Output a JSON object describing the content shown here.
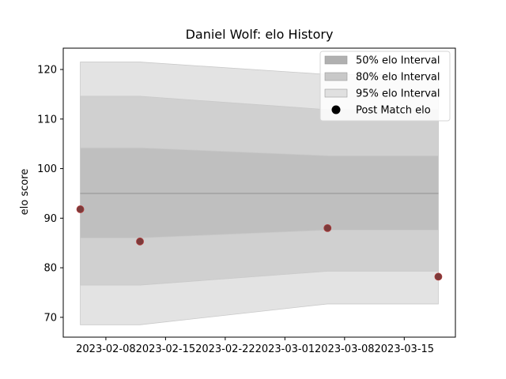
{
  "chart_data": {
    "type": "line",
    "title": "Daniel Wolf: elo History",
    "xlabel": "",
    "ylabel": "elo score",
    "x_ticks": [
      "2023-02-08",
      "2023-02-15",
      "2023-02-22",
      "2023-03-01",
      "2023-03-08",
      "2023-03-15"
    ],
    "y_ticks": [
      70,
      80,
      90,
      100,
      110,
      120
    ],
    "xlim": [
      "2023-02-03",
      "2023-03-21"
    ],
    "ylim": [
      66,
      124.3
    ],
    "legend_position": "top-right",
    "series": [
      {
        "name": "95% elo Interval",
        "kind": "band",
        "color": "#e3e3e3",
        "x": [
          "2023-02-05",
          "2023-02-12",
          "2023-03-06",
          "2023-03-19"
        ],
        "upper": [
          121.5,
          121.5,
          119.0,
          119.0
        ],
        "lower": [
          68.5,
          68.5,
          72.7,
          72.7
        ]
      },
      {
        "name": "80% elo Interval",
        "kind": "band",
        "color": "#d0d0d0",
        "x": [
          "2023-02-05",
          "2023-02-12",
          "2023-03-06",
          "2023-03-19"
        ],
        "upper": [
          114.6,
          114.6,
          111.9,
          111.9
        ],
        "lower": [
          76.5,
          76.5,
          79.3,
          79.3
        ]
      },
      {
        "name": "50% elo Interval",
        "kind": "band",
        "color": "#bfbfbf",
        "x": [
          "2023-02-05",
          "2023-02-12",
          "2023-03-06",
          "2023-03-19"
        ],
        "upper": [
          104.2,
          104.2,
          102.6,
          102.6
        ],
        "lower": [
          86.0,
          86.0,
          87.6,
          87.6
        ]
      },
      {
        "name": "Post Match elo",
        "kind": "scatter",
        "color": "#7d3a3a",
        "x": [
          "2023-02-05",
          "2023-02-12",
          "2023-03-06",
          "2023-03-19"
        ],
        "values": [
          91.8,
          85.3,
          88.0,
          78.2
        ]
      }
    ],
    "mean_line": {
      "value": 95.0,
      "color": "#a8a8a8",
      "x": [
        "2023-02-05",
        "2023-03-19"
      ]
    },
    "legend": [
      {
        "label": "50% elo Interval",
        "color": "#b0b0b0",
        "marker": "patch"
      },
      {
        "label": "80% elo Interval",
        "color": "#c8c8c8",
        "marker": "patch"
      },
      {
        "label": "95% elo Interval",
        "color": "#e0e0e0",
        "marker": "patch"
      },
      {
        "label": "Post Match elo",
        "color": "#000000",
        "marker": "circle"
      }
    ]
  }
}
